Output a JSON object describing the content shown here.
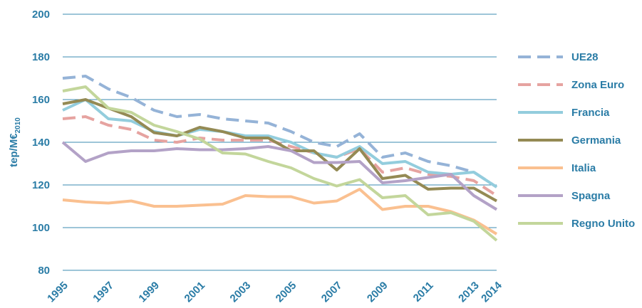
{
  "chart_data": {
    "type": "line",
    "y_label": "tep/M€",
    "y_label_sub": "2010",
    "x": [
      1995,
      1996,
      1997,
      1998,
      1999,
      2000,
      2001,
      2002,
      2003,
      2004,
      2005,
      2006,
      2007,
      2008,
      2009,
      2010,
      2011,
      2012,
      2013,
      2014
    ],
    "xlim": [
      1995,
      2014
    ],
    "xticks": [
      1995,
      1997,
      1999,
      2001,
      2003,
      2005,
      2007,
      2009,
      2011,
      2013,
      2014
    ],
    "ylim": [
      80,
      200
    ],
    "yticks": [
      80,
      100,
      120,
      140,
      160,
      180,
      200
    ],
    "grid": true,
    "legend": "right",
    "series": [
      {
        "name": "UE28",
        "color": "#95b3d7",
        "dashed": true,
        "values": [
          170,
          171,
          165,
          161,
          155,
          152,
          153,
          151,
          150,
          149,
          145,
          140,
          138,
          144,
          133,
          135,
          131,
          129,
          126,
          119
        ]
      },
      {
        "name": "Zona Euro",
        "color": "#e6a3a0",
        "dashed": true,
        "values": [
          151,
          152,
          148,
          146,
          141,
          140,
          142,
          141,
          141,
          141,
          138,
          135,
          133,
          137,
          126,
          128,
          125,
          124,
          122,
          115
        ]
      },
      {
        "name": "Francia",
        "color": "#93cddd",
        "values": [
          155,
          160,
          151,
          150,
          145,
          143,
          146,
          145,
          143,
          143,
          140,
          135,
          133,
          138,
          130,
          131,
          126,
          125,
          126,
          119
        ]
      },
      {
        "name": "Germania",
        "color": "#948a54",
        "values": [
          158,
          160,
          156,
          152,
          144.5,
          143,
          147,
          145,
          142,
          142,
          136,
          136,
          127,
          137,
          123,
          124.5,
          118,
          118.5,
          118.5,
          112.5
        ]
      },
      {
        "name": "Italia",
        "color": "#fac090",
        "values": [
          113,
          112,
          111.5,
          112.5,
          110,
          110,
          110.5,
          111,
          115,
          114.5,
          114.5,
          111.5,
          112.5,
          118,
          108.5,
          110,
          110,
          107.5,
          103.5,
          97
        ]
      },
      {
        "name": "Spagna",
        "color": "#b3a2c7",
        "values": [
          140,
          131,
          135,
          136,
          136,
          137,
          136.5,
          136.5,
          137,
          138,
          136,
          130.5,
          130.5,
          131,
          121,
          122,
          123.5,
          125,
          115,
          108.5
        ]
      },
      {
        "name": "Regno Unito",
        "color": "#c3d69b",
        "values": [
          164,
          166,
          156,
          154,
          148,
          145,
          141.5,
          135,
          134.5,
          131,
          128,
          123,
          119.5,
          122.5,
          114,
          115,
          106,
          107,
          103,
          94
        ]
      }
    ]
  }
}
